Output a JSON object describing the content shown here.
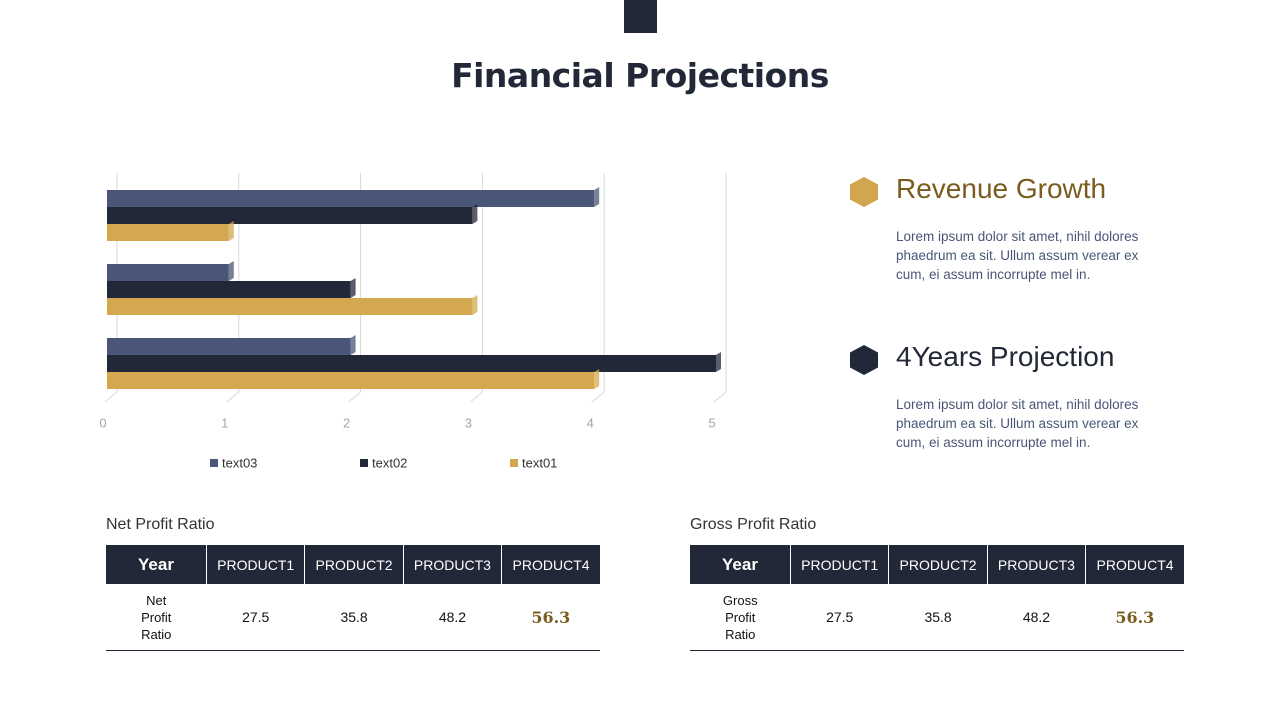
{
  "header": {
    "title": "Financial Projections"
  },
  "chart_data": {
    "type": "bar",
    "orientation": "horizontal",
    "categories": [
      null,
      null,
      null
    ],
    "series": [
      {
        "name": "text03",
        "color": "#4a5677",
        "values": [
          2,
          1,
          4
        ]
      },
      {
        "name": "text02",
        "color": "#232838",
        "values": [
          5,
          2,
          3
        ]
      },
      {
        "name": "text01",
        "color": "#d4a84f",
        "values": [
          4,
          3,
          1
        ]
      }
    ],
    "xlim": [
      0,
      5
    ],
    "xticks": [
      0,
      1,
      2,
      3,
      4,
      5
    ],
    "grid": true,
    "legend": "bottom"
  },
  "points": [
    {
      "heading": "Revenue Growth",
      "color": "#d4a54f",
      "text": "Lorem ipsum dolor sit amet, nihil dolores phaedrum  ea sit. Ullum  assum verear ex cum,  ei assum incorrupte  mel in."
    },
    {
      "heading": "4Years Projection",
      "color": "#232838",
      "text": "Lorem ipsum dolor sit amet, nihil dolores phaedrum  ea sit. Ullum  assum verear ex cum,  ei assum incorrupte  mel in."
    }
  ],
  "tables": [
    {
      "title": "Net Profit Ratio",
      "columns": [
        "Year",
        "PRODUCT1",
        "PRODUCT2",
        "PRODUCT3",
        "PRODUCT4"
      ],
      "rows": [
        [
          "Net Profit Ratio",
          27.5,
          35.8,
          48.2,
          56.3
        ]
      ]
    },
    {
      "title": "Gross Profit Ratio",
      "columns": [
        "Year",
        "PRODUCT1",
        "PRODUCT2",
        "PRODUCT3",
        "PRODUCT4"
      ],
      "rows": [
        [
          "Gross Profit Ratio",
          27.5,
          35.8,
          48.2,
          56.3
        ]
      ]
    }
  ]
}
